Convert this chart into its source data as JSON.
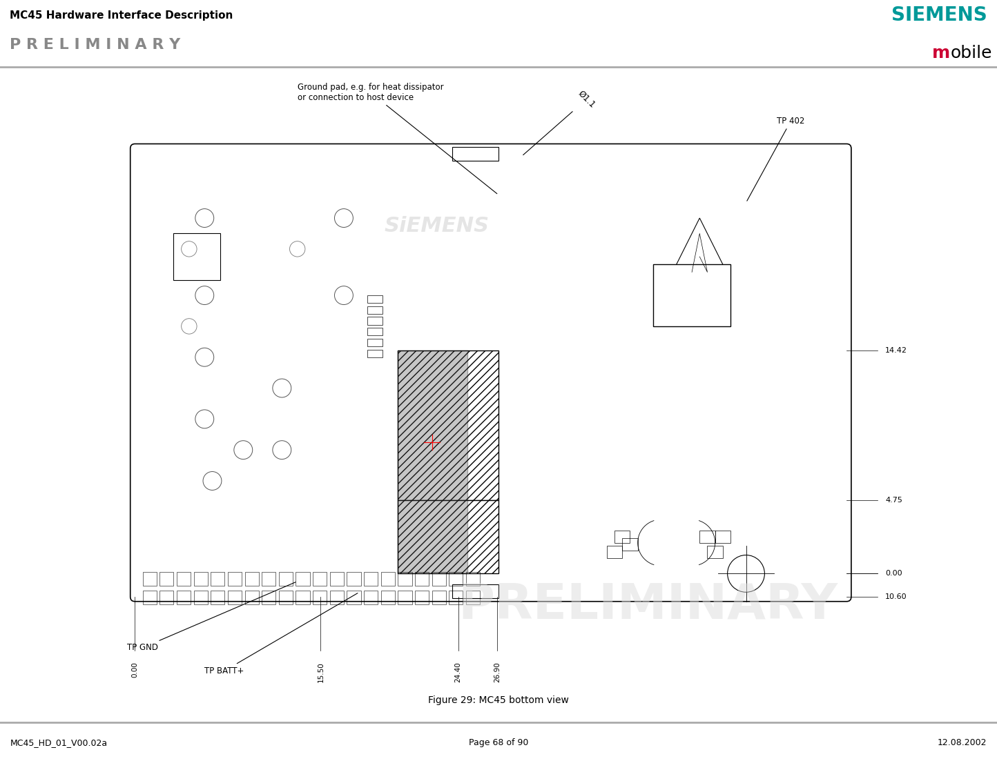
{
  "title_header": "MC45 Hardware Interface Description",
  "preliminary_header": "P R E L I M I N A R Y",
  "siemens_color": "#009999",
  "mobile_m_color": "#cc0033",
  "footer_left": "MC45_HD_01_V00.02a",
  "footer_center": "Page 68 of 90",
  "footer_right": "12.08.2002",
  "figure_caption": "Figure 29: MC45 bottom view",
  "preliminary_watermark": "PRELIMINARY",
  "label_ground_pad": "Ground pad, e.g. for heat dissipator\nor connection to host device",
  "label_tp402": "TP 402",
  "label_phi": "Ø1.1",
  "label_tp_gnd": "TP GND",
  "label_tp_batt": "TP BATT+",
  "dim_14_42": "14.42",
  "dim_4_75": "4.75",
  "dim_0_00_right": "0.00",
  "dim_10_60": "10.60",
  "dim_26_90": "26.90",
  "dim_24_40": "24.40",
  "dim_15_50": "15.50",
  "dim_0_00_bottom": "0.00",
  "bg_color": "#ffffff",
  "line_color": "#000000",
  "hatch_color": "#000000",
  "siemens_text_color": "#cccccc"
}
